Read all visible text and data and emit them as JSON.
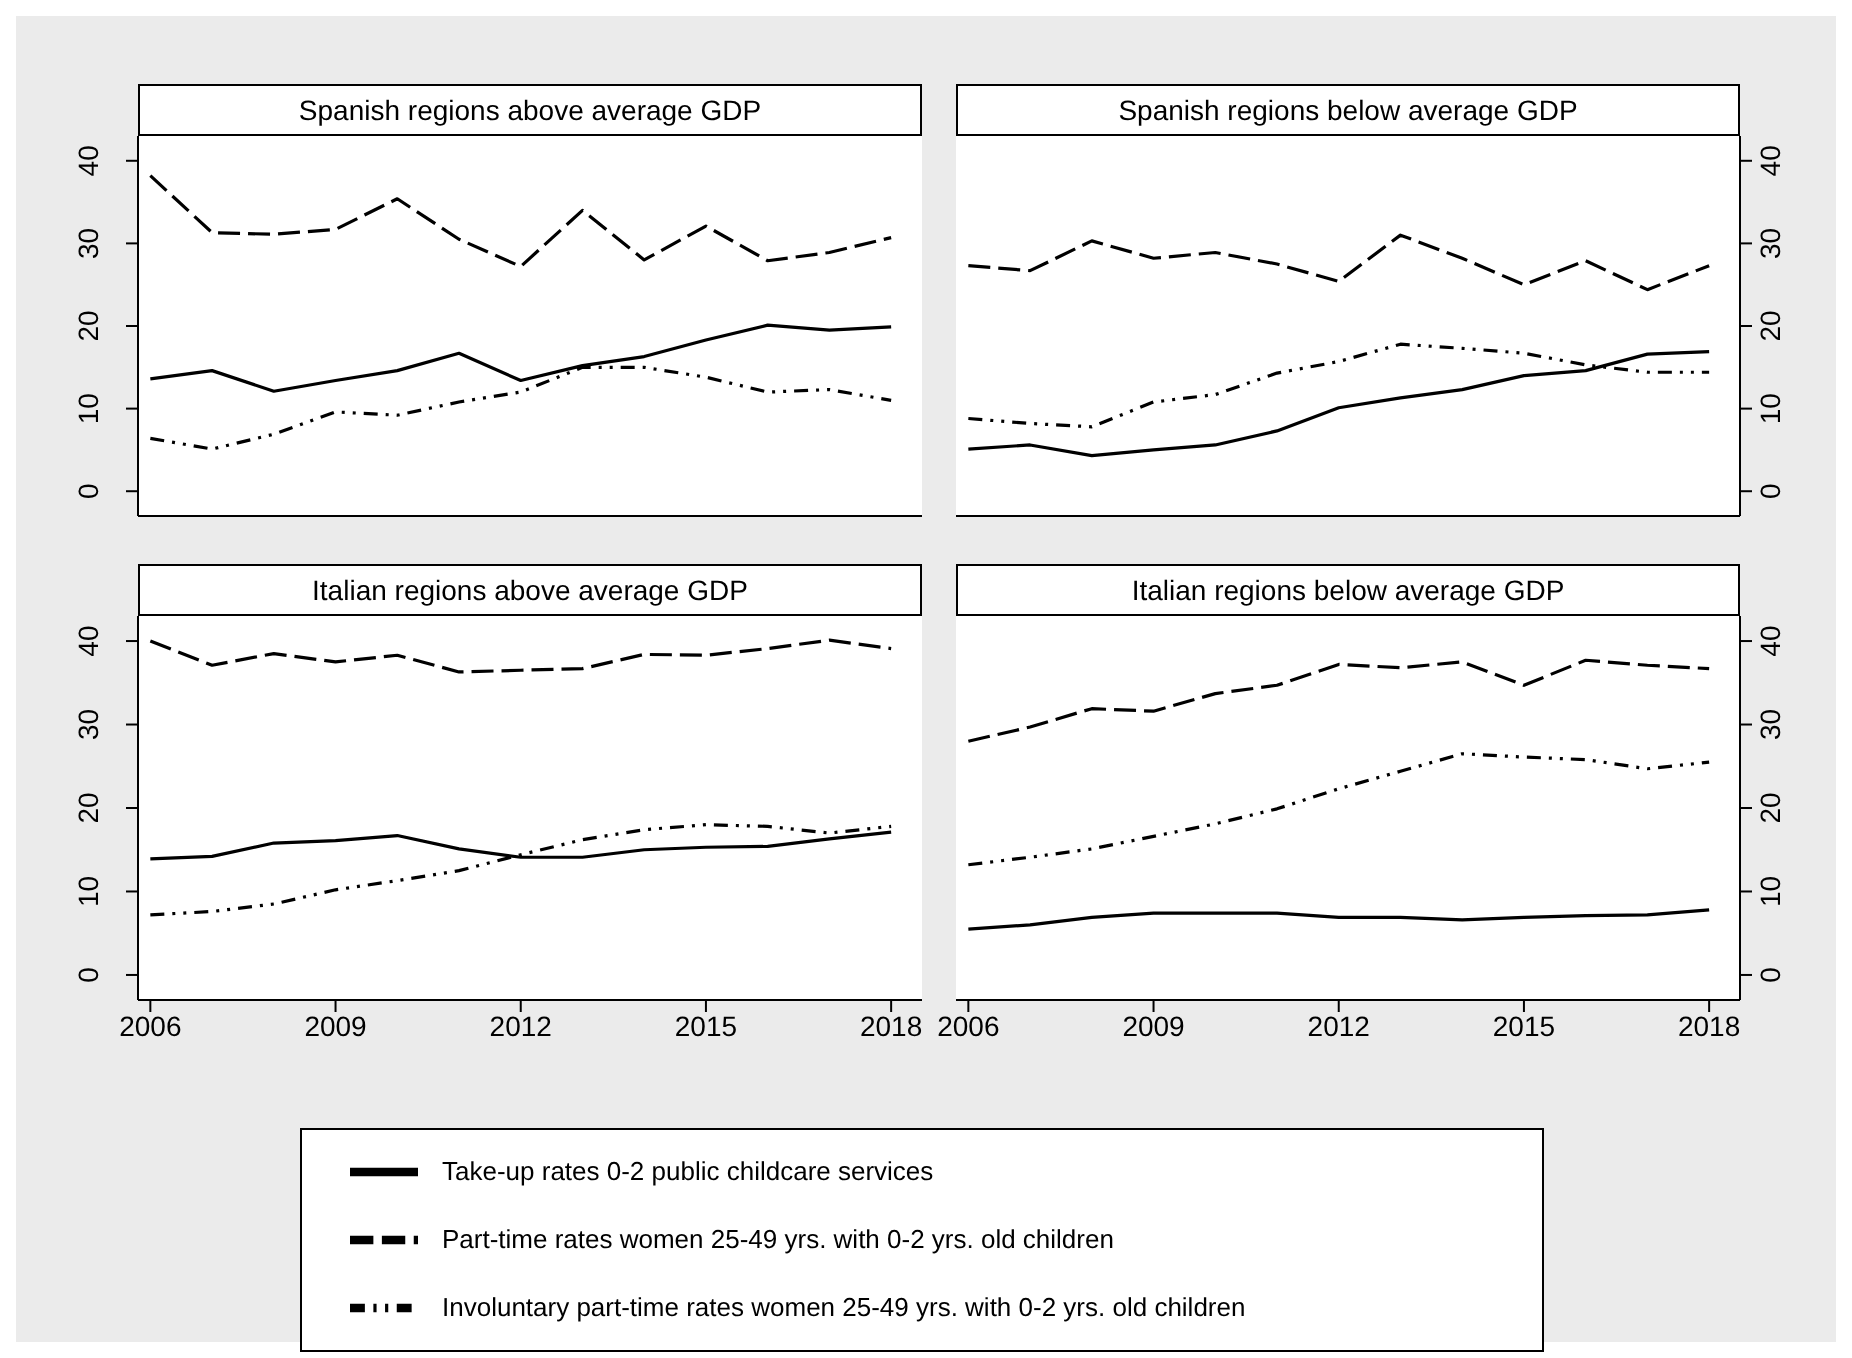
{
  "chart_data": [
    {
      "type": "line",
      "title": "Spanish regions above average GDP",
      "x": [
        2006,
        2007,
        2008,
        2009,
        2010,
        2011,
        2012,
        2013,
        2014,
        2015,
        2016,
        2017,
        2018
      ],
      "xlim": [
        2005.8,
        2018.5
      ],
      "xticks": [
        2006,
        2009,
        2012,
        2015,
        2018
      ],
      "ylim": [
        -3,
        43
      ],
      "yticks": [
        0,
        10,
        20,
        30,
        40
      ],
      "tick_labels": "y",
      "grid": false,
      "legend": false,
      "marker": "none",
      "series": [
        {
          "color": "#000000",
          "line_style": "solid",
          "values": [
            13.6,
            14.6,
            12.1,
            13.4,
            14.6,
            16.7,
            13.4,
            15.2,
            16.3,
            18.3,
            20.1,
            19.5,
            19.9
          ]
        },
        {
          "color": "#000000",
          "line_style": "dashed",
          "values": [
            38.2,
            31.3,
            31.1,
            31.7,
            35.4,
            30.5,
            27.2,
            34.0,
            28.0,
            32.1,
            27.9,
            28.9,
            30.7
          ]
        },
        {
          "color": "#000000",
          "line_style": "dotted",
          "values": [
            6.4,
            5.1,
            6.9,
            9.6,
            9.2,
            10.8,
            12.0,
            15.0,
            15.0,
            13.8,
            12.0,
            12.3,
            11.0
          ]
        }
      ]
    },
    {
      "type": "line",
      "title": "Spanish regions below average GDP",
      "x": [
        2006,
        2007,
        2008,
        2009,
        2010,
        2011,
        2012,
        2013,
        2014,
        2015,
        2016,
        2017,
        2018
      ],
      "xlim": [
        2005.8,
        2018.5
      ],
      "xticks": [
        2006,
        2009,
        2012,
        2015,
        2018
      ],
      "ylim": [
        -3,
        43
      ],
      "yticks": [
        0,
        10,
        20,
        30,
        40
      ],
      "tick_labels": "y",
      "grid": false,
      "legend": false,
      "marker": "none",
      "series": [
        {
          "color": "#000000",
          "line_style": "solid",
          "values": [
            5.1,
            5.6,
            4.3,
            5.0,
            5.6,
            7.3,
            10.1,
            11.3,
            12.3,
            14.0,
            14.6,
            16.6,
            16.9
          ]
        },
        {
          "color": "#000000",
          "line_style": "dashed",
          "values": [
            27.3,
            26.7,
            30.3,
            28.2,
            28.9,
            27.5,
            25.4,
            31.0,
            28.2,
            25.0,
            27.9,
            24.4,
            27.3
          ]
        },
        {
          "color": "#000000",
          "line_style": "dotted",
          "values": [
            8.8,
            8.2,
            7.8,
            10.8,
            11.7,
            14.3,
            15.7,
            17.8,
            17.3,
            16.7,
            15.3,
            14.4,
            14.4
          ]
        }
      ]
    },
    {
      "type": "line",
      "title": "Italian regions above average GDP",
      "x": [
        2006,
        2007,
        2008,
        2009,
        2010,
        2011,
        2012,
        2013,
        2014,
        2015,
        2016,
        2017,
        2018
      ],
      "xlim": [
        2005.8,
        2018.5
      ],
      "xticks": [
        2006,
        2009,
        2012,
        2015,
        2018
      ],
      "ylim": [
        -3,
        43
      ],
      "yticks": [
        0,
        10,
        20,
        30,
        40
      ],
      "grid": false,
      "legend": false,
      "marker": "none",
      "series": [
        {
          "color": "#000000",
          "line_style": "solid",
          "values": [
            13.9,
            14.2,
            15.8,
            16.1,
            16.7,
            15.1,
            14.1,
            14.1,
            15.0,
            15.3,
            15.4,
            16.3,
            17.1
          ]
        },
        {
          "color": "#000000",
          "line_style": "dashed",
          "values": [
            40.0,
            37.1,
            38.5,
            37.5,
            38.3,
            36.3,
            36.5,
            36.7,
            38.4,
            38.3,
            39.1,
            40.1,
            39.1
          ]
        },
        {
          "color": "#000000",
          "line_style": "dotted",
          "values": [
            7.2,
            7.6,
            8.5,
            10.2,
            11.3,
            12.5,
            14.4,
            16.2,
            17.4,
            18.0,
            17.8,
            17.0,
            17.8
          ]
        }
      ]
    },
    {
      "type": "line",
      "title": "Italian regions below average GDP",
      "x": [
        2006,
        2007,
        2008,
        2009,
        2010,
        2011,
        2012,
        2013,
        2014,
        2015,
        2016,
        2017,
        2018
      ],
      "xlim": [
        2005.8,
        2018.5
      ],
      "xticks": [
        2006,
        2009,
        2012,
        2015,
        2018
      ],
      "ylim": [
        -3,
        43
      ],
      "yticks": [
        0,
        10,
        20,
        30,
        40
      ],
      "grid": false,
      "legend": "bottom",
      "marker": "none",
      "series": [
        {
          "name": "Take-up rates 0-2 public childcare services",
          "color": "#000000",
          "line_style": "solid",
          "values": [
            5.5,
            6.0,
            6.9,
            7.4,
            7.4,
            7.4,
            6.9,
            6.9,
            6.6,
            6.9,
            7.1,
            7.2,
            7.8
          ]
        },
        {
          "name": "Part-time rates women 25-49 yrs. with 0-2 yrs. old children",
          "color": "#000000",
          "line_style": "dashed",
          "values": [
            28.0,
            29.7,
            31.9,
            31.6,
            33.7,
            34.7,
            37.2,
            36.8,
            37.5,
            34.7,
            37.7,
            37.1,
            36.7
          ]
        },
        {
          "name": "Involuntary part-time rates women 25-49 yrs. with 0-2 yrs. old children",
          "color": "#000000",
          "line_style": "dotted",
          "values": [
            13.2,
            14.1,
            15.1,
            16.6,
            18.1,
            19.9,
            22.3,
            24.4,
            26.5,
            26.1,
            25.8,
            24.7,
            25.5
          ]
        }
      ]
    }
  ]
}
